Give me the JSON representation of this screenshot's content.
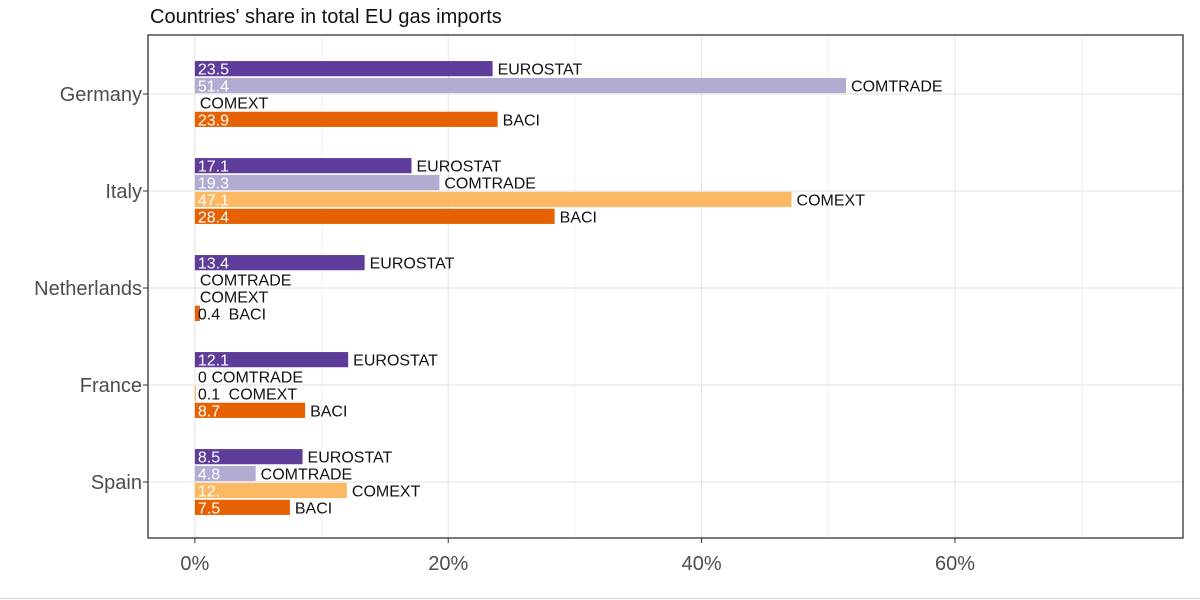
{
  "chart_data": {
    "type": "bar",
    "orientation": "horizontal",
    "title": "Countries' share in total EU gas imports",
    "xlabel": "",
    "ylabel": "",
    "xlim": [
      -3.7,
      78
    ],
    "x_ticks": [
      0,
      20,
      40,
      60
    ],
    "x_tick_labels": [
      "0%",
      "20%",
      "40%",
      "60%"
    ],
    "grid": true,
    "legend": "none",
    "categories": [
      "Germany",
      "Italy",
      "Netherlands",
      "France",
      "Spain"
    ],
    "series": [
      {
        "name": "EUROSTAT",
        "color": "#5e3c99",
        "values": [
          23.5,
          17.1,
          13.4,
          12.1,
          8.5
        ],
        "value_labels": [
          "23.5",
          "17.1",
          "13.4",
          "12.1",
          "8.5"
        ]
      },
      {
        "name": "COMTRADE",
        "color": "#b2abd2",
        "values": [
          51.4,
          19.3,
          null,
          0,
          4.8
        ],
        "value_labels": [
          "51.4",
          "19.3",
          "",
          "0",
          "4.8"
        ]
      },
      {
        "name": "COMEXT",
        "color": "#fdb863",
        "values": [
          null,
          47.1,
          null,
          0.1,
          12
        ],
        "value_labels": [
          "",
          "47.1",
          "",
          "0.1",
          "12."
        ]
      },
      {
        "name": "BACI",
        "color": "#e66101",
        "values": [
          23.9,
          28.4,
          0.4,
          8.7,
          7.5
        ],
        "value_labels": [
          "23.9",
          "28.4",
          "0.4",
          "8.7",
          "7.5"
        ]
      }
    ]
  }
}
